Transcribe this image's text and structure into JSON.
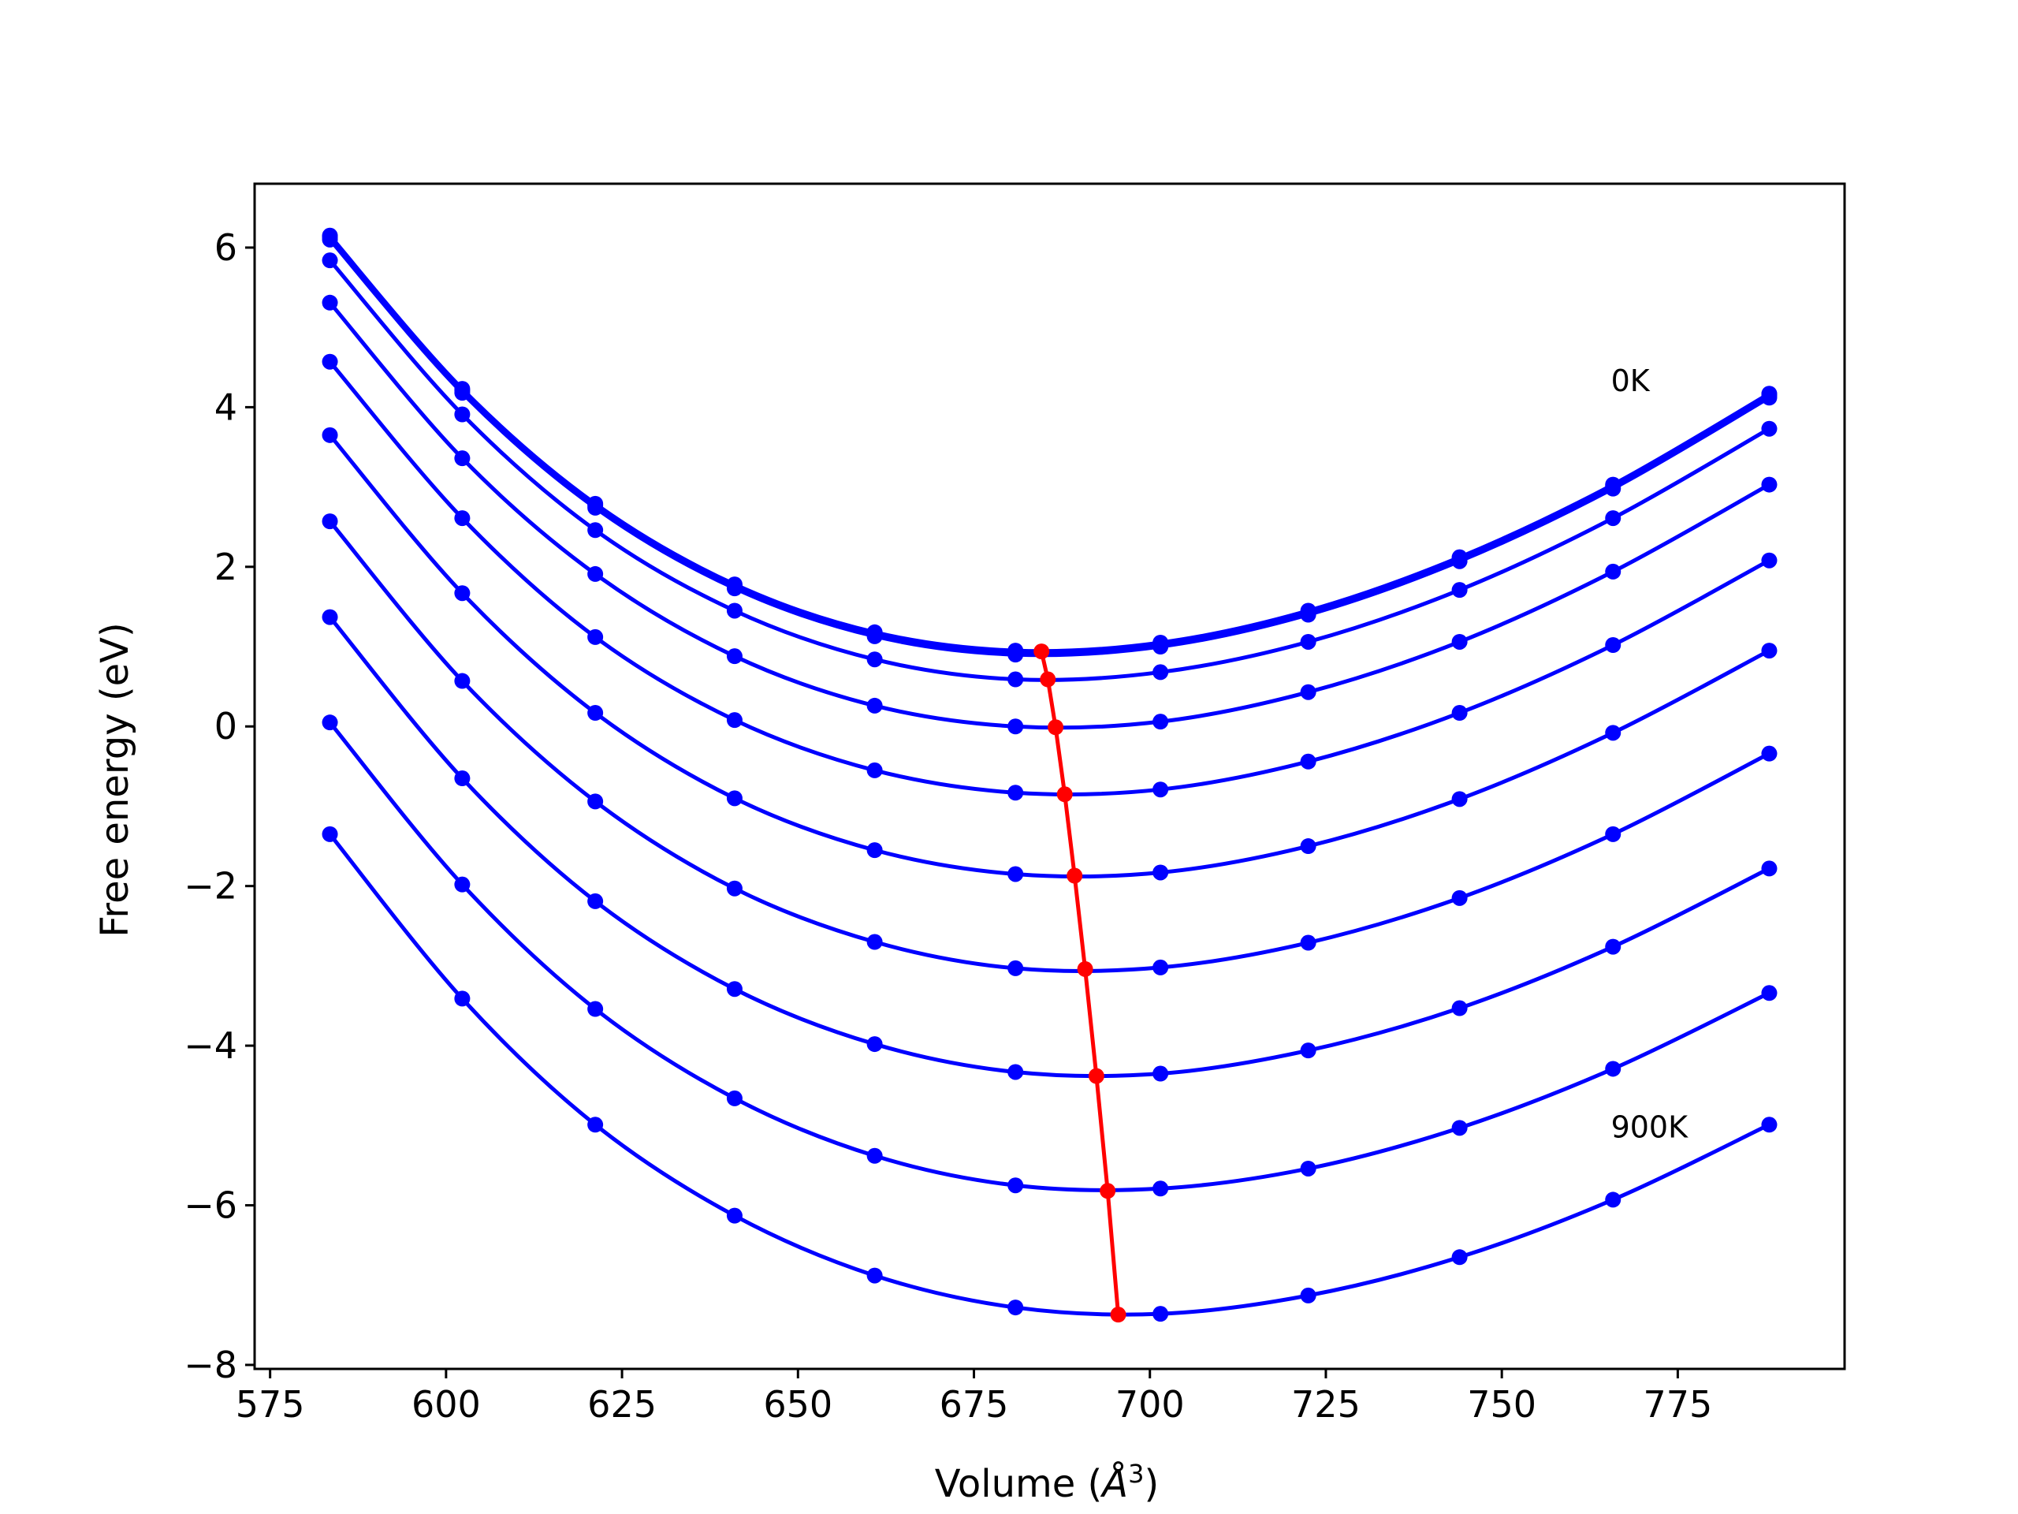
{
  "chart_data": {
    "type": "line",
    "title": "",
    "xlabel": "Volume ($\\AA^3$)",
    "xlabel_display": [
      "Volume (",
      "Å",
      "3",
      ")"
    ],
    "ylabel": "Free energy (eV)",
    "xlim": [
      572.8,
      798.7
    ],
    "ylim": [
      -8.05,
      6.8
    ],
    "x_ticks": [
      575,
      600,
      625,
      650,
      675,
      700,
      725,
      750,
      775
    ],
    "x_tick_labels": [
      "575",
      "600",
      "625",
      "650",
      "675",
      "700",
      "725",
      "750",
      "775"
    ],
    "y_ticks": [
      -8,
      -6,
      -4,
      -2,
      0,
      2,
      4,
      6
    ],
    "y_tick_labels": [
      "−8",
      "−6",
      "−4",
      "−2",
      "0",
      "2",
      "4",
      "6"
    ],
    "grid": false,
    "legend": "none",
    "colors": {
      "curves": "#0000ff",
      "minimum_path": "#ff0000",
      "frame": "#000000"
    },
    "annotations": [
      {
        "text": "0K",
        "x": 765.5,
        "y": 4.2
      },
      {
        "text": "900K",
        "x": 765.5,
        "y": -5.15
      }
    ],
    "x": [
      583.5,
      602.3,
      621.2,
      641.0,
      660.9,
      680.9,
      701.5,
      722.5,
      744.0,
      765.8,
      788.0
    ],
    "series": [
      {
        "values": [
          6.15,
          4.23,
          2.79,
          1.78,
          1.18,
          0.95,
          1.05,
          1.45,
          2.12,
          3.03,
          4.17
        ]
      },
      {
        "values": [
          6.13,
          4.21,
          2.77,
          1.76,
          1.16,
          0.93,
          1.03,
          1.43,
          2.1,
          3.01,
          4.15
        ]
      },
      {
        "values": [
          6.1,
          4.18,
          2.74,
          1.73,
          1.13,
          0.9,
          1.0,
          1.4,
          2.07,
          2.98,
          4.12
        ]
      },
      {
        "values": [
          5.84,
          3.91,
          2.46,
          1.45,
          0.84,
          0.59,
          0.68,
          1.06,
          1.71,
          2.61,
          3.73
        ]
      },
      {
        "values": [
          5.31,
          3.36,
          1.91,
          0.88,
          0.26,
          0.0,
          0.06,
          0.43,
          1.06,
          1.94,
          3.03
        ]
      },
      {
        "values": [
          4.57,
          2.61,
          1.12,
          0.08,
          -0.55,
          -0.83,
          -0.79,
          -0.44,
          0.17,
          1.02,
          2.08
        ]
      },
      {
        "values": [
          3.65,
          1.67,
          0.17,
          -0.9,
          -1.55,
          -1.85,
          -1.83,
          -1.5,
          -0.91,
          -0.08,
          0.95
        ]
      },
      {
        "values": [
          2.57,
          0.57,
          -0.94,
          -2.03,
          -2.7,
          -3.03,
          -3.02,
          -2.71,
          -2.15,
          -1.35,
          -0.34
        ]
      },
      {
        "values": [
          1.37,
          -0.65,
          -2.19,
          -3.29,
          -3.98,
          -4.33,
          -4.35,
          -4.06,
          -3.53,
          -2.76,
          -1.78
        ]
      },
      {
        "values": [
          0.05,
          -1.98,
          -3.54,
          -4.66,
          -5.38,
          -5.75,
          -5.79,
          -5.54,
          -5.03,
          -4.29,
          -3.34
        ]
      },
      {
        "values": [
          -1.35,
          -3.41,
          -4.99,
          -6.13,
          -6.88,
          -7.28,
          -7.36,
          -7.13,
          -6.65,
          -5.93,
          -4.99
        ]
      }
    ],
    "minimum_path": {
      "x": [
        684.6,
        685.5,
        686.6,
        687.9,
        689.3,
        690.8,
        692.4,
        694.0,
        695.5
      ],
      "y": [
        0.94,
        0.59,
        -0.01,
        -0.85,
        -1.87,
        -3.04,
        -4.38,
        -5.82,
        -7.37
      ]
    }
  }
}
